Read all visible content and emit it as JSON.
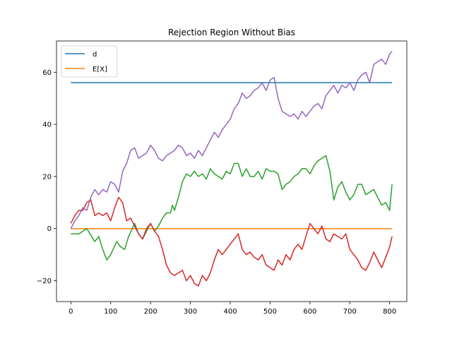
{
  "chart_data": {
    "type": "line",
    "title": "Rejection Region Without Bias",
    "xlabel": "",
    "ylabel": "",
    "xlim": [
      -36,
      843
    ],
    "ylim": [
      -28,
      72
    ],
    "xticks": [
      0,
      100,
      200,
      300,
      400,
      500,
      600,
      700,
      800
    ],
    "yticks": [
      -20,
      0,
      20,
      40,
      60
    ],
    "ytick_labels": [
      "−20",
      "0",
      "20",
      "40",
      "60"
    ],
    "grid": false,
    "legend": {
      "placement": "top-left",
      "entries": [
        "d",
        "E[X]"
      ]
    },
    "series": [
      {
        "name": "d",
        "color": "#1f77b4",
        "x": [
          0,
          806
        ],
        "y": [
          56,
          56
        ]
      },
      {
        "name": "E[X]",
        "color": "#ff7f0e",
        "x": [
          0,
          806
        ],
        "y": [
          0,
          0
        ]
      },
      {
        "color": "#2ca02c",
        "x": [
          0,
          20,
          40,
          60,
          70,
          80,
          90,
          100,
          115,
          125,
          135,
          145,
          160,
          170,
          180,
          190,
          200,
          210,
          220,
          230,
          240,
          250,
          255,
          260,
          270,
          280,
          290,
          300,
          310,
          320,
          330,
          340,
          350,
          360,
          370,
          380,
          390,
          400,
          410,
          420,
          430,
          440,
          450,
          460,
          470,
          480,
          490,
          500,
          510,
          520,
          530,
          540,
          550,
          560,
          570,
          580,
          590,
          600,
          610,
          620,
          630,
          640,
          650,
          660,
          670,
          680,
          690,
          700,
          710,
          720,
          730,
          740,
          750,
          760,
          770,
          780,
          790,
          800,
          806
        ],
        "y": [
          -2,
          -2,
          0,
          -5,
          -3,
          -8,
          -12,
          -10,
          -5,
          -7,
          -8,
          -3,
          2,
          -2,
          -4,
          -1,
          2,
          -1,
          1,
          4,
          6,
          6,
          9,
          7,
          12,
          18,
          21,
          20,
          22,
          20,
          21,
          19,
          23,
          21,
          20,
          19,
          22,
          21,
          25,
          25,
          20,
          23,
          20,
          20,
          22,
          19,
          23,
          22,
          22,
          21,
          15,
          17,
          18,
          20,
          21,
          23,
          23,
          21,
          24,
          26,
          27,
          28,
          22,
          11,
          16,
          18,
          14,
          11,
          13,
          17,
          17,
          13,
          14,
          15,
          12,
          9,
          10,
          7,
          17
        ]
      },
      {
        "color": "#d62728",
        "x": [
          0,
          10,
          20,
          30,
          40,
          50,
          60,
          70,
          80,
          90,
          100,
          110,
          120,
          130,
          140,
          150,
          160,
          170,
          180,
          190,
          200,
          210,
          220,
          230,
          240,
          250,
          260,
          270,
          280,
          290,
          300,
          310,
          320,
          330,
          340,
          350,
          360,
          370,
          380,
          390,
          400,
          410,
          420,
          430,
          440,
          450,
          460,
          470,
          480,
          490,
          500,
          510,
          520,
          530,
          540,
          550,
          560,
          570,
          580,
          590,
          600,
          610,
          620,
          630,
          640,
          650,
          660,
          670,
          680,
          690,
          700,
          710,
          720,
          730,
          740,
          750,
          760,
          770,
          780,
          790,
          800,
          806
        ],
        "y": [
          2,
          5,
          7,
          7,
          10,
          11,
          5,
          6,
          5,
          6,
          3,
          8,
          12,
          10,
          3,
          4,
          1,
          -2,
          -4,
          0,
          2,
          -1,
          -3,
          -8,
          -14,
          -17,
          -18,
          -17,
          -16,
          -20,
          -18,
          -21,
          -22,
          -18,
          -20,
          -17,
          -12,
          -8,
          -10,
          -8,
          -6,
          -4,
          -2,
          -8,
          -10,
          -9,
          -11,
          -12,
          -10,
          -14,
          -15,
          -16,
          -12,
          -14,
          -10,
          -12,
          -8,
          -6,
          -8,
          -3,
          2,
          0,
          -2,
          1,
          -4,
          -5,
          -2,
          -3,
          -4,
          -2,
          -8,
          -10,
          -12,
          -15,
          -16,
          -13,
          -9,
          -12,
          -15,
          -11,
          -7,
          -3
        ]
      },
      {
        "color": "#9467bd",
        "x": [
          0,
          10,
          20,
          30,
          40,
          50,
          60,
          70,
          80,
          90,
          100,
          110,
          120,
          130,
          140,
          150,
          160,
          170,
          180,
          190,
          200,
          210,
          220,
          230,
          240,
          250,
          260,
          270,
          280,
          290,
          300,
          310,
          320,
          330,
          340,
          350,
          360,
          370,
          380,
          390,
          400,
          410,
          420,
          430,
          440,
          450,
          460,
          470,
          480,
          490,
          500,
          510,
          520,
          530,
          540,
          550,
          560,
          570,
          580,
          590,
          600,
          610,
          620,
          630,
          640,
          650,
          660,
          670,
          680,
          690,
          700,
          710,
          720,
          730,
          740,
          750,
          760,
          770,
          780,
          790,
          800,
          806
        ],
        "y": [
          0,
          3,
          5,
          8,
          7,
          12,
          15,
          13,
          15,
          14,
          18,
          17,
          14,
          22,
          25,
          30,
          31,
          27,
          28,
          29,
          32,
          30,
          27,
          26,
          28,
          29,
          30,
          32,
          31,
          28,
          29,
          27,
          30,
          28,
          31,
          34,
          37,
          35,
          38,
          40,
          42,
          46,
          48,
          52,
          50,
          51,
          53,
          54,
          56,
          53,
          57,
          58,
          50,
          45,
          44,
          43,
          44,
          42,
          45,
          43,
          45,
          47,
          48,
          46,
          51,
          53,
          55,
          52,
          55,
          54,
          56,
          53,
          57,
          59,
          60,
          56,
          63,
          64,
          65,
          63,
          67,
          68
        ]
      }
    ]
  }
}
